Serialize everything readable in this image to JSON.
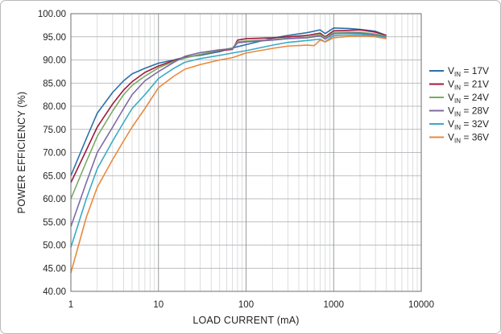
{
  "chart_data": {
    "type": "line",
    "title": "",
    "xlabel": "LOAD CURRENT (mA)",
    "ylabel": "POWER EFFICIENCY (%)",
    "xscale": "log",
    "xlim": [
      1,
      10000
    ],
    "ylim": [
      40,
      100
    ],
    "grid": true,
    "legend_position": "right",
    "x_ticks": [
      {
        "value": 1,
        "label": "1"
      },
      {
        "value": 10,
        "label": "10"
      },
      {
        "value": 100,
        "label": "100"
      },
      {
        "value": 1000,
        "label": "1000"
      },
      {
        "value": 10000,
        "label": "10000"
      }
    ],
    "y_ticks": [
      {
        "value": 40,
        "label": "40.00"
      },
      {
        "value": 45,
        "label": "45.00"
      },
      {
        "value": 50,
        "label": "50.00"
      },
      {
        "value": 55,
        "label": "55.00"
      },
      {
        "value": 60,
        "label": "60.00"
      },
      {
        "value": 65,
        "label": "65.00"
      },
      {
        "value": 70,
        "label": "70.00"
      },
      {
        "value": 75,
        "label": "75.00"
      },
      {
        "value": 80,
        "label": "80.00"
      },
      {
        "value": 85,
        "label": "85.00"
      },
      {
        "value": 90,
        "label": "90.00"
      },
      {
        "value": 95,
        "label": "95.00"
      },
      {
        "value": 100,
        "label": "100.00"
      }
    ],
    "series": [
      {
        "name": "17V",
        "label_prefix": "V",
        "label_sub": "IN",
        "label_suffix": " = 17V",
        "color": "#2b6fa8",
        "x": [
          1,
          1.5,
          2,
          3,
          4,
          5,
          7,
          10,
          15,
          20,
          30,
          50,
          70,
          100,
          200,
          300,
          500,
          700,
          800,
          1000,
          1500,
          2000,
          3000,
          4000
        ],
        "y": [
          65.0,
          73.0,
          78.5,
          83.0,
          85.5,
          87.0,
          88.2,
          89.3,
          90.0,
          90.6,
          91.0,
          91.8,
          92.6,
          93.3,
          94.7,
          95.3,
          95.9,
          96.5,
          95.7,
          96.9,
          96.8,
          96.6,
          96.2,
          95.3
        ]
      },
      {
        "name": "21V",
        "label_prefix": "V",
        "label_sub": "IN",
        "label_suffix": " = 21V",
        "color": "#9e1b3c",
        "x": [
          1,
          1.5,
          2,
          3,
          4,
          5,
          7,
          10,
          15,
          20,
          30,
          50,
          70,
          80,
          100,
          200,
          300,
          500,
          700,
          800,
          1000,
          1500,
          2000,
          3000,
          4000
        ],
        "y": [
          63.5,
          70.5,
          75.5,
          80.5,
          83.5,
          85.3,
          87.3,
          88.7,
          89.9,
          90.5,
          91.2,
          92.0,
          92.3,
          94.3,
          94.6,
          94.8,
          95.0,
          95.3,
          95.8,
          95.0,
          96.3,
          96.4,
          96.5,
          96.0,
          95.3
        ]
      },
      {
        "name": "24V",
        "label_prefix": "V",
        "label_sub": "IN",
        "label_suffix": " = 24V",
        "color": "#7aa964",
        "x": [
          1,
          1.5,
          2,
          3,
          4,
          5,
          7,
          10,
          15,
          20,
          30,
          50,
          70,
          80,
          100,
          200,
          300,
          500,
          700,
          800,
          1000,
          1500,
          2000,
          3000,
          4000
        ],
        "y": [
          60.0,
          68.0,
          73.5,
          79.0,
          82.5,
          84.5,
          86.5,
          88.3,
          89.7,
          90.4,
          91.2,
          92.1,
          92.6,
          93.9,
          94.1,
          94.4,
          94.7,
          94.9,
          95.5,
          94.8,
          95.9,
          96.0,
          96.0,
          95.6,
          95.1
        ]
      },
      {
        "name": "28V",
        "label_prefix": "V",
        "label_sub": "IN",
        "label_suffix": " = 28V",
        "color": "#7e6aa4",
        "x": [
          1,
          1.5,
          2,
          3,
          4,
          5,
          7,
          10,
          15,
          20,
          30,
          50,
          70,
          80,
          100,
          200,
          300,
          500,
          700,
          800,
          1000,
          1500,
          2000,
          3000,
          4000
        ],
        "y": [
          54.0,
          63.5,
          70.0,
          75.5,
          79.5,
          82.5,
          85.5,
          87.5,
          89.5,
          90.8,
          91.6,
          92.2,
          92.4,
          93.7,
          93.9,
          94.3,
          94.6,
          94.8,
          95.2,
          94.5,
          95.7,
          95.8,
          95.8,
          95.4,
          94.9
        ]
      },
      {
        "name": "32V",
        "label_prefix": "V",
        "label_sub": "IN",
        "label_suffix": " = 32V",
        "color": "#3aaac4",
        "x": [
          1,
          1.5,
          2,
          3,
          4,
          5,
          7,
          10,
          15,
          20,
          30,
          50,
          70,
          100,
          200,
          300,
          500,
          700,
          800,
          1000,
          1500,
          2000,
          3000,
          4000
        ],
        "y": [
          49.5,
          60.0,
          66.5,
          72.5,
          76.5,
          79.5,
          82.5,
          86.0,
          88.2,
          89.5,
          90.3,
          91.0,
          91.5,
          92.0,
          93.2,
          93.8,
          94.2,
          94.5,
          93.9,
          95.3,
          95.4,
          95.5,
          95.2,
          94.8
        ]
      },
      {
        "name": "36V",
        "label_prefix": "V",
        "label_sub": "IN",
        "label_suffix": " = 36V",
        "color": "#e8893d",
        "x": [
          1,
          1.5,
          2,
          3,
          4,
          5,
          7,
          10,
          15,
          20,
          30,
          50,
          70,
          100,
          200,
          300,
          500,
          600,
          700,
          800,
          1000,
          1500,
          2000,
          3000,
          4000
        ],
        "y": [
          44.0,
          56.0,
          62.5,
          68.5,
          72.5,
          75.5,
          79.5,
          84.0,
          86.5,
          88.0,
          89.0,
          90.0,
          90.5,
          91.5,
          92.5,
          93.0,
          93.2,
          93.1,
          94.3,
          93.9,
          94.8,
          95.1,
          95.2,
          95.0,
          94.6
        ]
      }
    ]
  }
}
